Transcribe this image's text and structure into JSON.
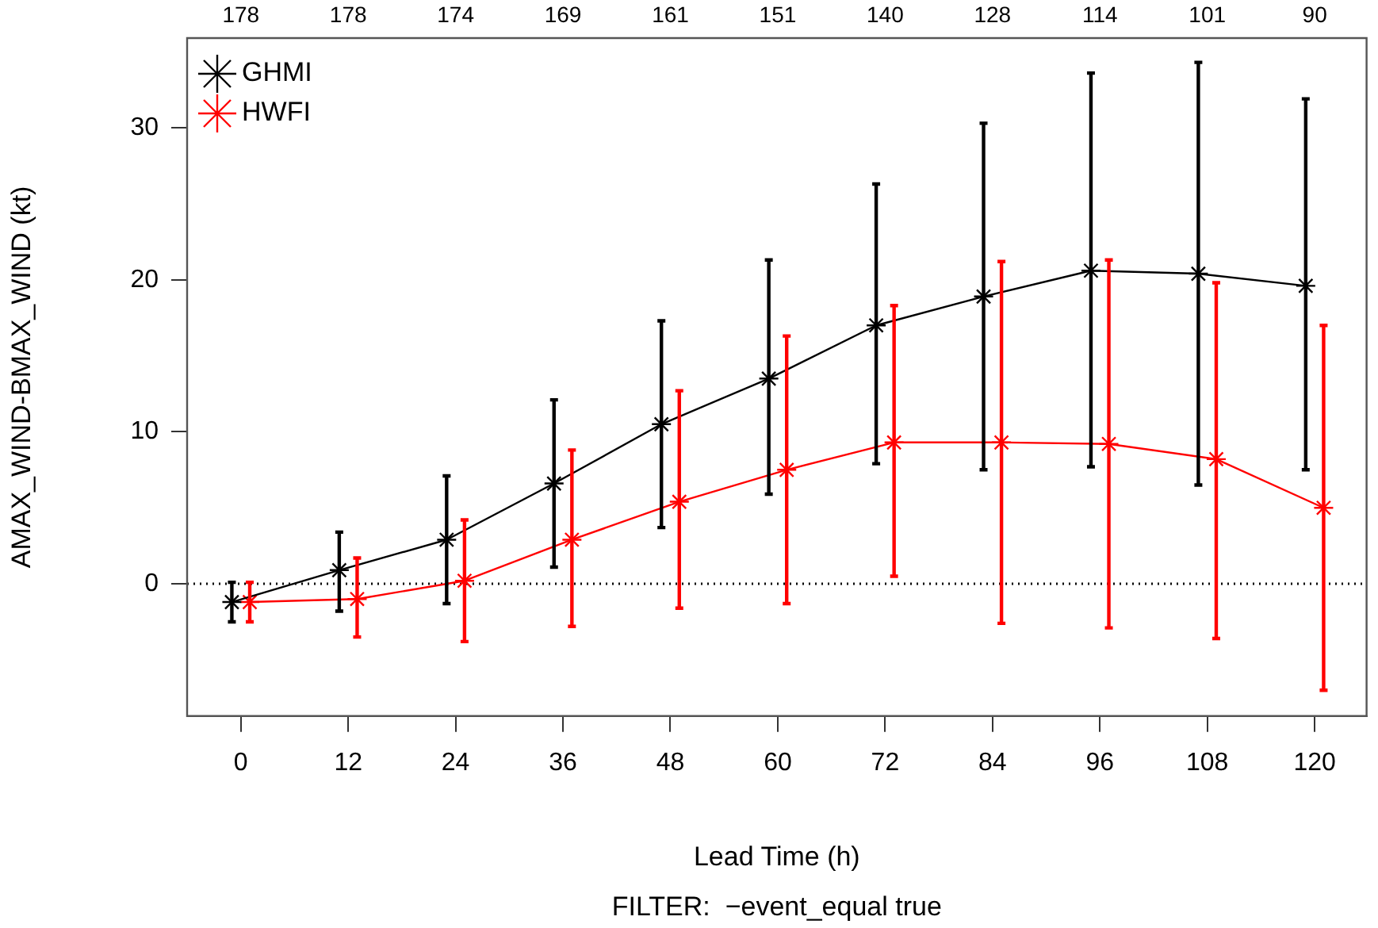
{
  "chart_data": {
    "type": "line",
    "xlabel": "Lead Time (h)",
    "ylabel": "AMAX_WIND-BMAX_WIND (kt)",
    "annotations": [
      "FILTER:  −event_equal true",
      "178",
      "178",
      "174",
      "169",
      "161",
      "151",
      "140",
      "128",
      "114",
      "101",
      "90"
    ],
    "xlim": [
      -6,
      125.8
    ],
    "xticks": [
      0,
      12,
      24,
      36,
      48,
      60,
      72,
      84,
      96,
      108,
      120
    ],
    "ylim": [
      -8.7,
      35.9
    ],
    "yticks": [
      0,
      10,
      20,
      30
    ],
    "grid": false,
    "legend": "top left",
    "marker": "cross",
    "line_style": "solid",
    "ref_lines": [
      {
        "axis": "y",
        "value": 0,
        "color": "#000000",
        "line_style": "dotted"
      }
    ],
    "series": [
      {
        "name": "GHMI",
        "color": "#000000",
        "x": [
          -1,
          11,
          23,
          35,
          47,
          59,
          71,
          83,
          95,
          107,
          119
        ],
        "values": [
          -1.2,
          0.9,
          2.9,
          6.6,
          10.5,
          13.5,
          17.0,
          18.9,
          20.6,
          20.4,
          19.6
        ],
        "errors": [
          [
            -2.5,
            0.1
          ],
          [
            -1.8,
            3.4
          ],
          [
            -1.3,
            7.1
          ],
          [
            1.1,
            12.1
          ],
          [
            3.7,
            17.3
          ],
          [
            5.9,
            21.3
          ],
          [
            7.9,
            26.3
          ],
          [
            7.5,
            30.3
          ],
          [
            7.7,
            33.6
          ],
          [
            6.5,
            34.3
          ],
          [
            7.5,
            31.9
          ]
        ]
      },
      {
        "name": "HWFI",
        "color": "#ff0000",
        "x": [
          1,
          13,
          25,
          37,
          49,
          61,
          73,
          85,
          97,
          109,
          121
        ],
        "values": [
          -1.2,
          -1.0,
          0.2,
          2.9,
          5.4,
          7.5,
          9.3,
          9.3,
          9.2,
          8.2,
          5.0
        ],
        "errors": [
          [
            -2.5,
            0.1
          ],
          [
            -3.5,
            1.7
          ],
          [
            -3.8,
            4.2
          ],
          [
            -2.8,
            8.8
          ],
          [
            -1.6,
            12.7
          ],
          [
            -1.3,
            16.3
          ],
          [
            0.5,
            18.3
          ],
          [
            -2.6,
            21.2
          ],
          [
            -2.9,
            21.3
          ],
          [
            -3.6,
            19.8
          ],
          [
            -7.0,
            17.0
          ]
        ]
      }
    ]
  }
}
